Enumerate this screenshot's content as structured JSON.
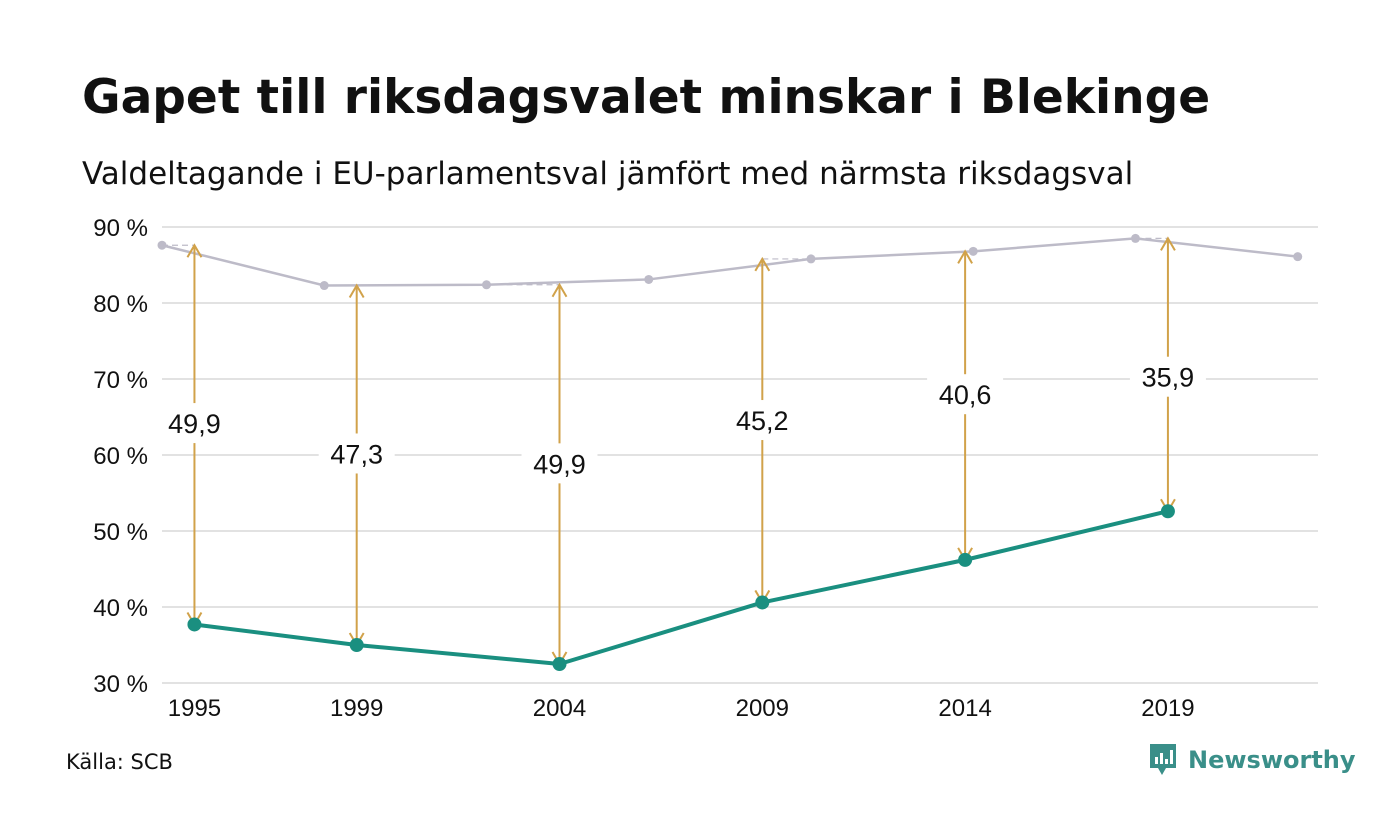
{
  "title": "Gapet till riksdagsvalet minskar i Blekinge",
  "subtitle": "Valdeltagande i EU-parlamentsval jämfört med närmsta riksdagsval",
  "source": "Källa: SCB",
  "logo_text": "Newsworthy",
  "logo_icon": "bar-chart-speech-bubble-icon",
  "colors": {
    "riksdag": "#bdbbc8",
    "eu": "#1a8f80",
    "arrow": "#d1a24a",
    "grid": "#e2e2e2",
    "logo": "#3a8f89"
  },
  "chart_data": {
    "type": "line",
    "title": "Gapet till riksdagsvalet minskar i Blekinge",
    "xlabel": "",
    "ylabel": "",
    "ylim": [
      30,
      90
    ],
    "xlim": [
      1994.2,
      2022.7
    ],
    "yticks": [
      {
        "value": 90,
        "label": "90 %"
      },
      {
        "value": 80,
        "label": "80 %"
      },
      {
        "value": 70,
        "label": "70 %"
      },
      {
        "value": 60,
        "label": "60 %"
      },
      {
        "value": 50,
        "label": "50 %"
      },
      {
        "value": 40,
        "label": "40 %"
      },
      {
        "value": 30,
        "label": "30 %"
      }
    ],
    "xticks": [
      "1995",
      "1999",
      "2004",
      "2009",
      "2014",
      "2019"
    ],
    "grid": true,
    "series": [
      {
        "x": [
          1994.2,
          1998.2,
          2002.2,
          2006.2,
          2010.2,
          2014.2,
          2018.2,
          2022.2
        ],
        "values": [
          87.6,
          82.3,
          82.4,
          83.1,
          85.8,
          86.8,
          88.5,
          86.1
        ]
      },
      {
        "x": [
          1995,
          1999,
          2004,
          2009,
          2014,
          2019
        ],
        "values": [
          37.7,
          35.0,
          32.5,
          40.6,
          46.2,
          52.6
        ]
      }
    ],
    "gaps": [
      {
        "x": 1995,
        "from": 87.6,
        "to": 37.7,
        "label": "49,9",
        "label_y": 64.2
      },
      {
        "x": 1999,
        "from": 82.3,
        "to": 35.0,
        "label": "47,3",
        "label_y": 60.2
      },
      {
        "x": 2004,
        "from": 82.4,
        "to": 32.5,
        "label": "49,9",
        "label_y": 58.9
      },
      {
        "x": 2009,
        "from": 85.8,
        "to": 40.6,
        "label": "45,2",
        "label_y": 64.6
      },
      {
        "x": 2014,
        "from": 86.8,
        "to": 46.2,
        "label": "40,6",
        "label_y": 68.0
      },
      {
        "x": 2019,
        "from": 88.5,
        "to": 52.6,
        "label": "35,9",
        "label_y": 70.3
      }
    ]
  }
}
